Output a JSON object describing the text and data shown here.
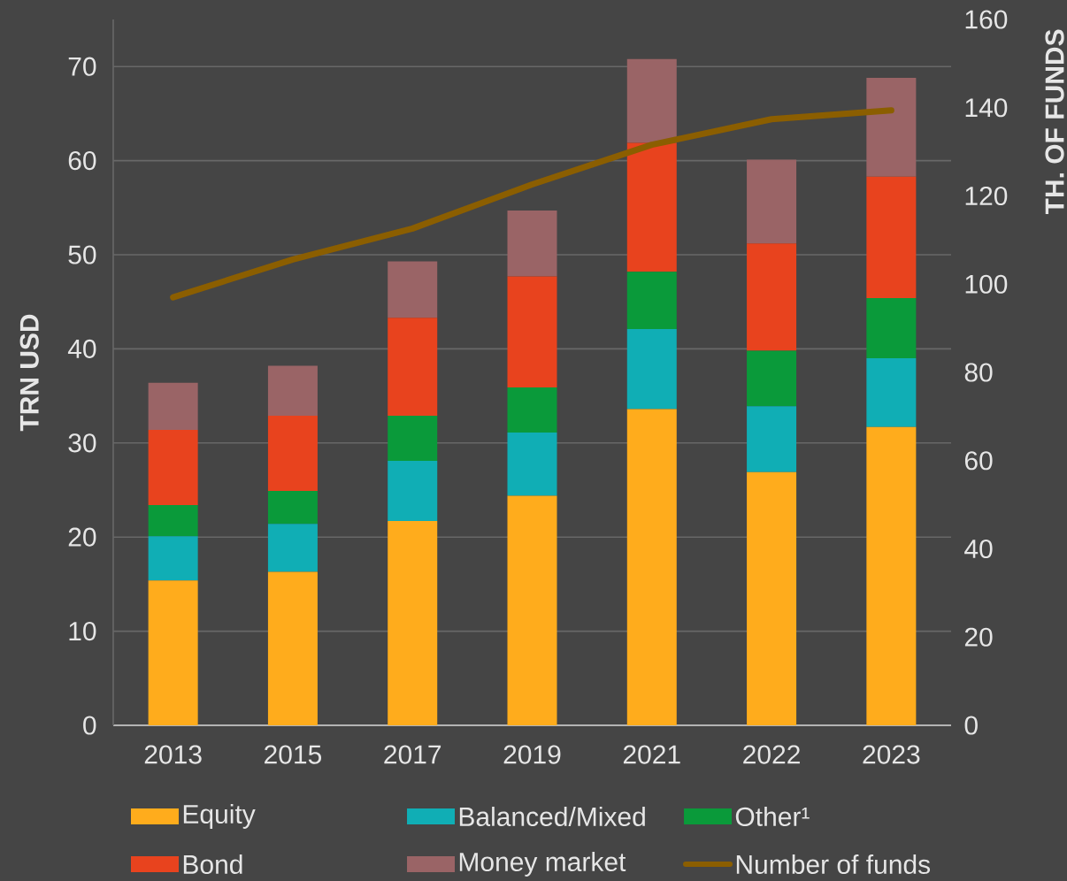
{
  "chart_data": {
    "type": "bar",
    "stacked": true,
    "categories": [
      "2013",
      "2015",
      "2017",
      "2019",
      "2021",
      "2022",
      "2023"
    ],
    "ylabel": "TRN USD",
    "y2label": "TH. OF FUNDS",
    "ylim": [
      0,
      75
    ],
    "yticks": [
      0,
      10,
      20,
      30,
      40,
      50,
      60,
      70
    ],
    "y2lim": [
      0,
      160
    ],
    "y2ticks": [
      0,
      20,
      40,
      60,
      80,
      100,
      120,
      140,
      160
    ],
    "grid": "y",
    "legend": "bottom",
    "series": [
      {
        "name": "Equity",
        "color": "#ffac1c",
        "values": [
          15.4,
          16.3,
          21.7,
          24.4,
          33.6,
          26.9,
          31.7
        ]
      },
      {
        "name": "Balanced/Mixed",
        "color": "#10aeb5",
        "values": [
          4.7,
          5.1,
          6.4,
          6.7,
          8.5,
          7.0,
          7.3
        ]
      },
      {
        "name": "Other¹",
        "color": "#0a9a3a",
        "values": [
          3.3,
          3.5,
          4.8,
          4.8,
          6.1,
          5.9,
          6.4
        ]
      },
      {
        "name": "Bond",
        "color": "#e8431e",
        "values": [
          8.0,
          8.0,
          10.4,
          11.8,
          13.7,
          11.4,
          12.9
        ]
      },
      {
        "name": "Money market",
        "color": "#9a6466",
        "values": [
          5.0,
          5.3,
          6.0,
          7.0,
          8.9,
          8.9,
          10.5
        ]
      },
      {
        "name": "Number of funds",
        "type": "line",
        "axis": "y2",
        "color": "#8b5e00",
        "values": [
          97,
          105.6,
          112.6,
          122.6,
          131.6,
          137.4,
          139.4
        ]
      }
    ]
  }
}
